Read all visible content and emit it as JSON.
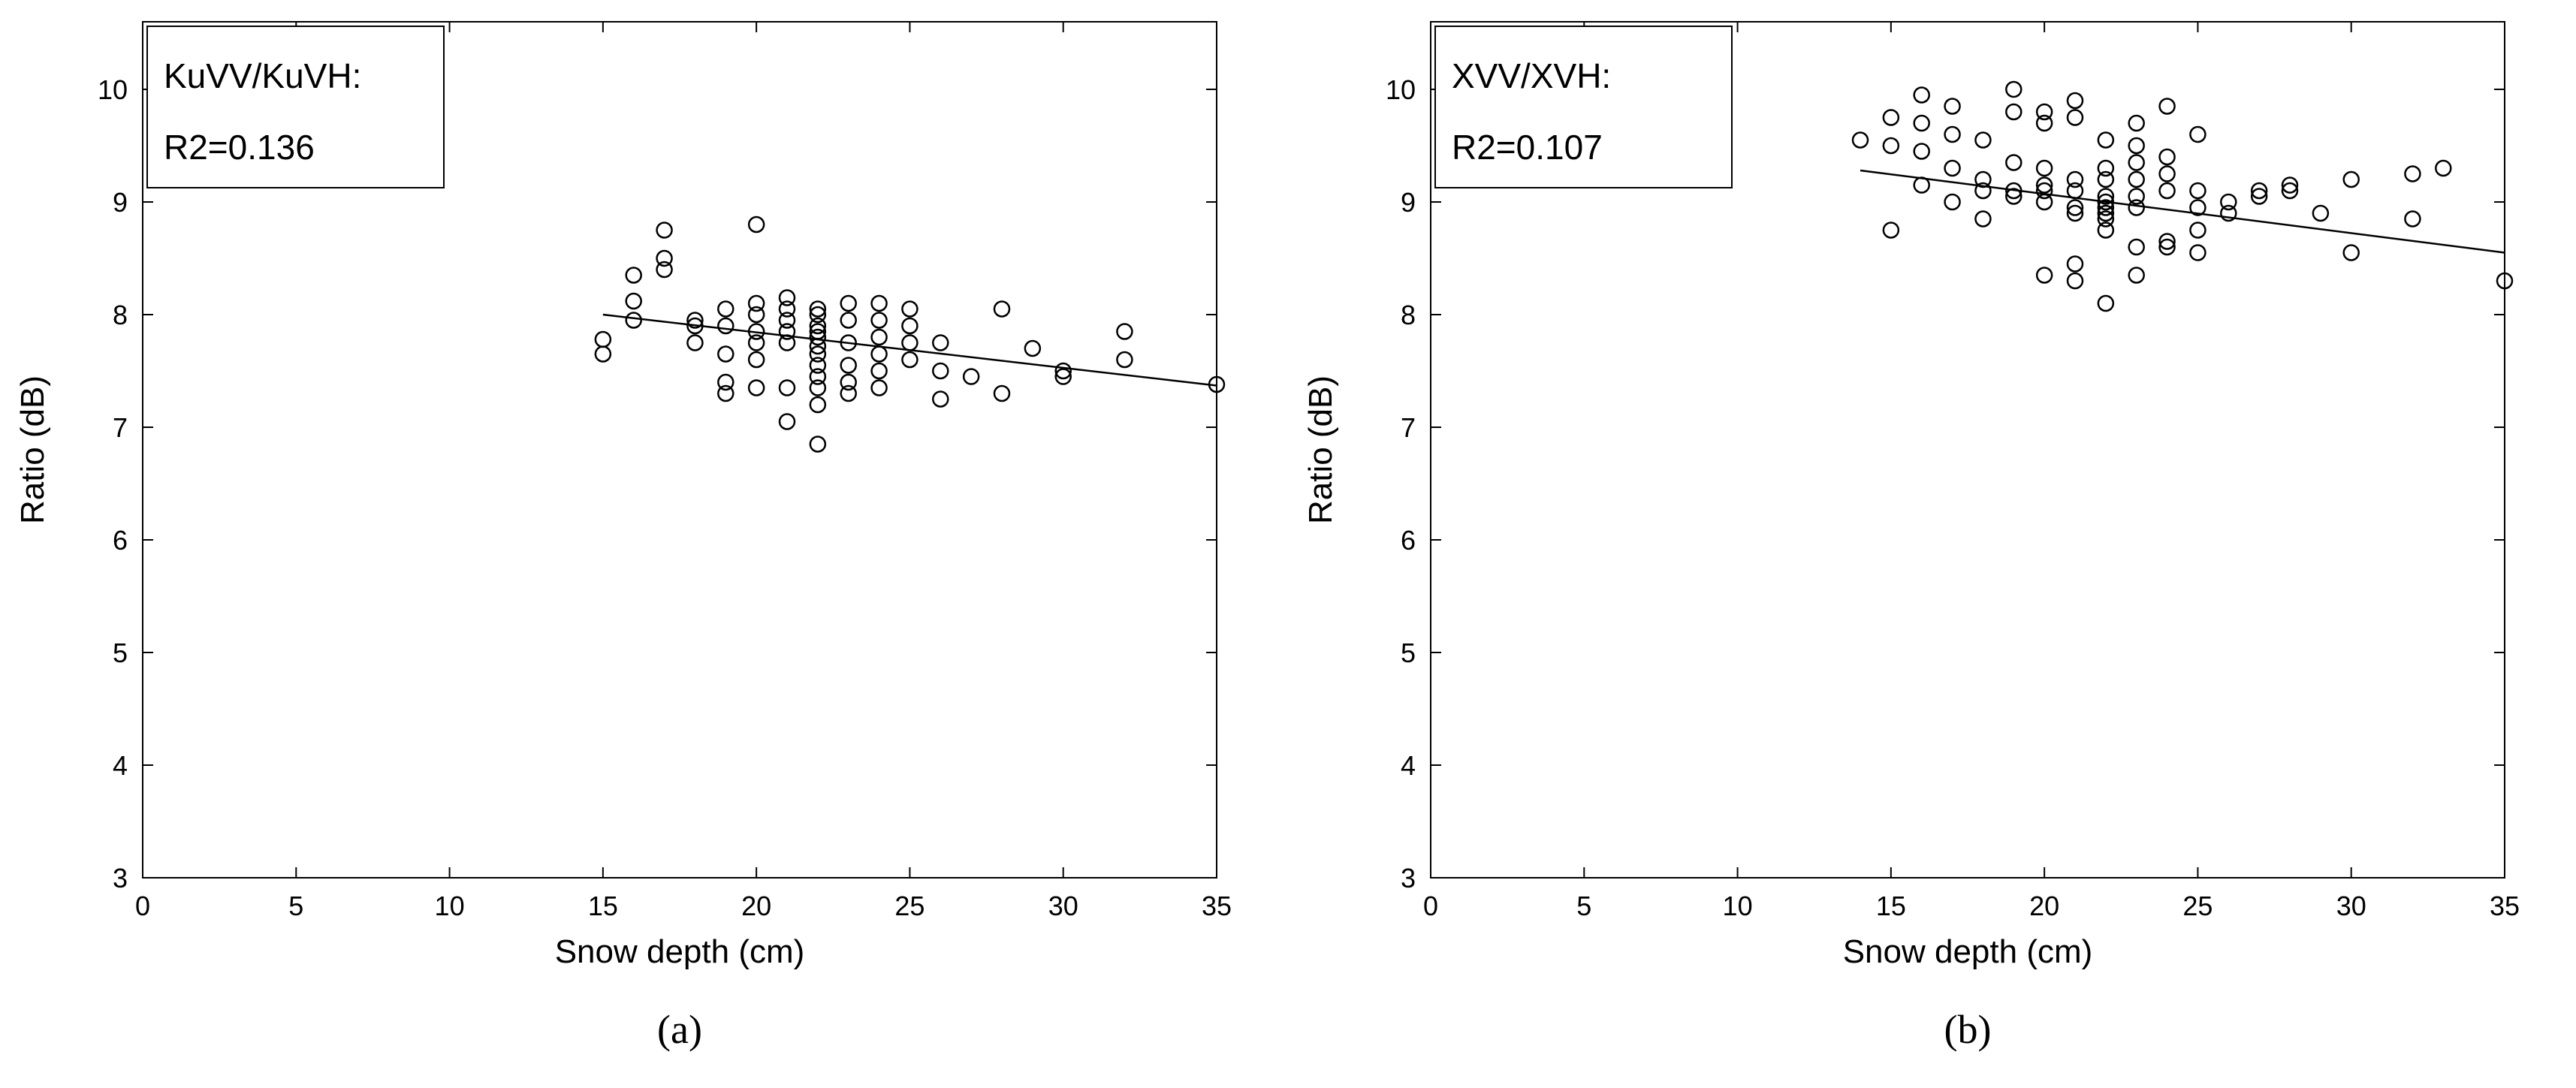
{
  "page": {
    "background": "#ffffff",
    "foreground": "#000000"
  },
  "captions": {
    "a": "(a)",
    "b": "(b)"
  },
  "chart_data": [
    {
      "id": "a",
      "type": "scatter",
      "annotation": [
        "KuVV/KuVH:",
        "R2=0.136"
      ],
      "xlabel": "Snow depth (cm)",
      "ylabel": "Ratio (dB)",
      "xlim": [
        0,
        35
      ],
      "ylim": [
        3,
        10.6
      ],
      "xticks": [
        0,
        5,
        10,
        15,
        20,
        25,
        30,
        35
      ],
      "yticks": [
        3,
        4,
        5,
        6,
        7,
        8,
        9,
        10
      ],
      "grid": false,
      "marker": {
        "shape": "circle",
        "fill": "none",
        "color": "#000000"
      },
      "fit_line": {
        "x": [
          15,
          35
        ],
        "y": [
          8.0,
          7.37
        ],
        "color": "#000000"
      },
      "points": [
        [
          15,
          7.65
        ],
        [
          15,
          7.78
        ],
        [
          16,
          8.35
        ],
        [
          16,
          8.12
        ],
        [
          16,
          7.95
        ],
        [
          17,
          8.75
        ],
        [
          17,
          8.5
        ],
        [
          17,
          8.4
        ],
        [
          18,
          7.95
        ],
        [
          18,
          7.9
        ],
        [
          18,
          7.75
        ],
        [
          19,
          8.05
        ],
        [
          19,
          7.9
        ],
        [
          19,
          7.65
        ],
        [
          19,
          7.4
        ],
        [
          19,
          7.3
        ],
        [
          20,
          8.8
        ],
        [
          20,
          8.1
        ],
        [
          20,
          8.0
        ],
        [
          20,
          7.85
        ],
        [
          20,
          7.75
        ],
        [
          20,
          7.6
        ],
        [
          20,
          7.35
        ],
        [
          21,
          8.15
        ],
        [
          21,
          8.05
        ],
        [
          21,
          7.95
        ],
        [
          21,
          7.85
        ],
        [
          21,
          7.75
        ],
        [
          21,
          7.35
        ],
        [
          21,
          7.05
        ],
        [
          22,
          8.05
        ],
        [
          22,
          8.0
        ],
        [
          22,
          7.9
        ],
        [
          22,
          7.85
        ],
        [
          22,
          7.8
        ],
        [
          22,
          7.72
        ],
        [
          22,
          7.65
        ],
        [
          22,
          7.55
        ],
        [
          22,
          7.45
        ],
        [
          22,
          7.35
        ],
        [
          22,
          7.2
        ],
        [
          22,
          6.85
        ],
        [
          23,
          8.1
        ],
        [
          23,
          7.95
        ],
        [
          23,
          7.75
        ],
        [
          23,
          7.55
        ],
        [
          23,
          7.4
        ],
        [
          23,
          7.3
        ],
        [
          24,
          8.1
        ],
        [
          24,
          7.95
        ],
        [
          24,
          7.8
        ],
        [
          24,
          7.65
        ],
        [
          24,
          7.5
        ],
        [
          24,
          7.35
        ],
        [
          25,
          8.05
        ],
        [
          25,
          7.9
        ],
        [
          25,
          7.75
        ],
        [
          25,
          7.6
        ],
        [
          26,
          7.75
        ],
        [
          26,
          7.5
        ],
        [
          26,
          7.25
        ],
        [
          27,
          7.45
        ],
        [
          28,
          8.05
        ],
        [
          28,
          7.3
        ],
        [
          29,
          7.7
        ],
        [
          30,
          7.5
        ],
        [
          30,
          7.45
        ],
        [
          32,
          7.85
        ],
        [
          32,
          7.6
        ],
        [
          35,
          7.38
        ]
      ]
    },
    {
      "id": "b",
      "type": "scatter",
      "annotation": [
        "XVV/XVH:",
        "R2=0.107"
      ],
      "xlabel": "Snow depth (cm)",
      "ylabel": "Ratio (dB)",
      "xlim": [
        0,
        35
      ],
      "ylim": [
        3,
        10.6
      ],
      "xticks": [
        0,
        5,
        10,
        15,
        20,
        25,
        30,
        35
      ],
      "yticks": [
        3,
        4,
        5,
        6,
        7,
        8,
        9,
        10
      ],
      "grid": false,
      "marker": {
        "shape": "circle",
        "fill": "none",
        "color": "#000000"
      },
      "fit_line": {
        "x": [
          14,
          35
        ],
        "y": [
          9.28,
          8.55
        ],
        "color": "#000000"
      },
      "points": [
        [
          14,
          9.55
        ],
        [
          15,
          9.75
        ],
        [
          15,
          9.5
        ],
        [
          15,
          8.75
        ],
        [
          16,
          9.95
        ],
        [
          16,
          9.7
        ],
        [
          16,
          9.45
        ],
        [
          16,
          9.15
        ],
        [
          17,
          9.85
        ],
        [
          17,
          9.6
        ],
        [
          17,
          9.3
        ],
        [
          17,
          9.0
        ],
        [
          18,
          9.55
        ],
        [
          18,
          9.2
        ],
        [
          18,
          9.1
        ],
        [
          18,
          8.85
        ],
        [
          19,
          10.0
        ],
        [
          19,
          9.8
        ],
        [
          19,
          9.35
        ],
        [
          19,
          9.1
        ],
        [
          19,
          9.05
        ],
        [
          20,
          9.8
        ],
        [
          20,
          9.7
        ],
        [
          20,
          9.3
        ],
        [
          20,
          9.15
        ],
        [
          20,
          9.1
        ],
        [
          20,
          9.0
        ],
        [
          20,
          8.35
        ],
        [
          21,
          9.9
        ],
        [
          21,
          9.75
        ],
        [
          21,
          9.2
        ],
        [
          21,
          9.1
        ],
        [
          21,
          8.95
        ],
        [
          21,
          8.9
        ],
        [
          21,
          8.45
        ],
        [
          21,
          8.3
        ],
        [
          22,
          9.55
        ],
        [
          22,
          9.3
        ],
        [
          22,
          9.2
        ],
        [
          22,
          9.05
        ],
        [
          22,
          9.0
        ],
        [
          22,
          8.95
        ],
        [
          22,
          8.9
        ],
        [
          22,
          8.85
        ],
        [
          22,
          8.75
        ],
        [
          22,
          8.1
        ],
        [
          23,
          9.7
        ],
        [
          23,
          9.5
        ],
        [
          23,
          9.35
        ],
        [
          23,
          9.2
        ],
        [
          23,
          9.05
        ],
        [
          23,
          8.95
        ],
        [
          23,
          8.6
        ],
        [
          23,
          8.35
        ],
        [
          24,
          9.85
        ],
        [
          24,
          9.4
        ],
        [
          24,
          9.25
        ],
        [
          24,
          9.1
        ],
        [
          24,
          8.65
        ],
        [
          24,
          8.6
        ],
        [
          25,
          9.6
        ],
        [
          25,
          9.1
        ],
        [
          25,
          8.95
        ],
        [
          25,
          8.75
        ],
        [
          25,
          8.55
        ],
        [
          26,
          9.0
        ],
        [
          26,
          8.9
        ],
        [
          27,
          9.1
        ],
        [
          27,
          9.05
        ],
        [
          28,
          9.15
        ],
        [
          28,
          9.1
        ],
        [
          29,
          8.9
        ],
        [
          30,
          9.2
        ],
        [
          30,
          8.55
        ],
        [
          32,
          9.25
        ],
        [
          32,
          8.85
        ],
        [
          33,
          9.3
        ],
        [
          35,
          8.3
        ]
      ]
    }
  ]
}
